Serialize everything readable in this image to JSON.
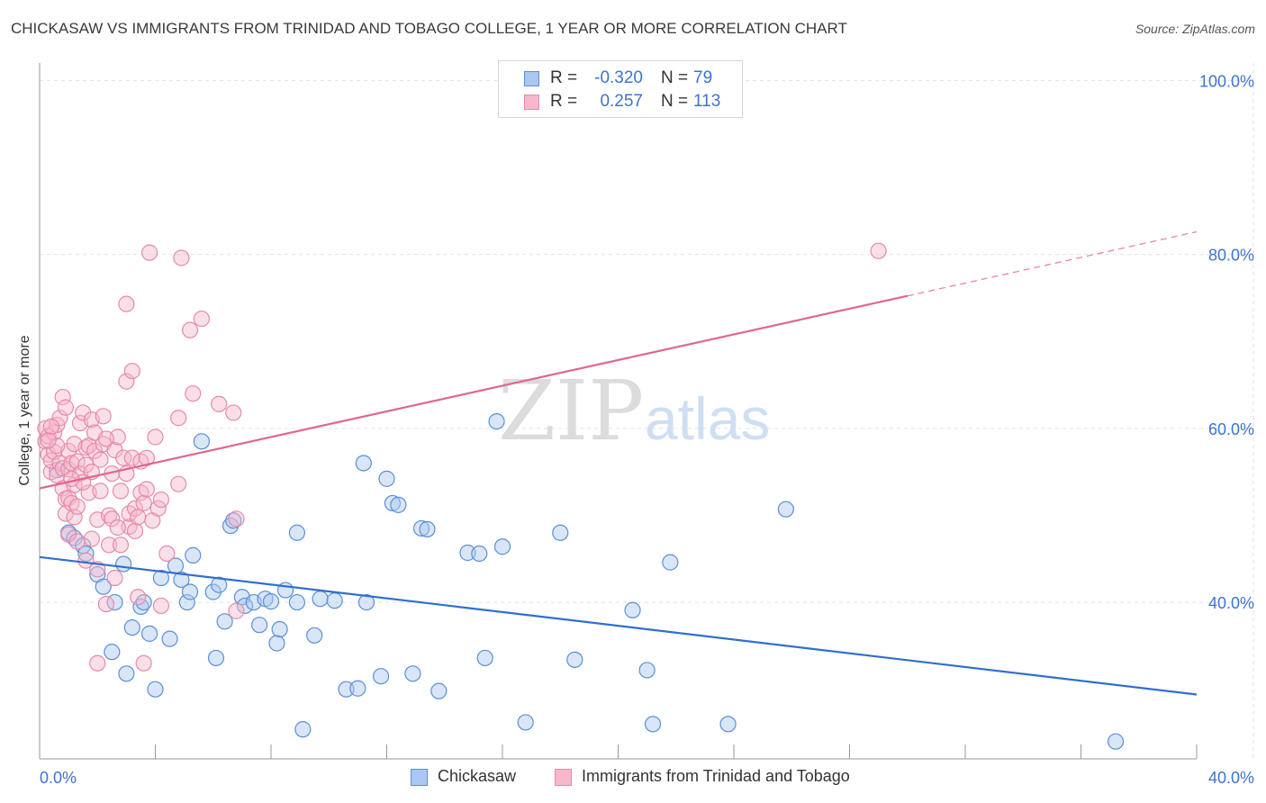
{
  "title": "CHICKASAW VS IMMIGRANTS FROM TRINIDAD AND TOBAGO COLLEGE, 1 YEAR OR MORE CORRELATION CHART",
  "source": "Source: ZipAtlas.com",
  "watermark": {
    "zip": "ZIP",
    "atlas": "atlas"
  },
  "stats": {
    "row1": {
      "r_label": "R =",
      "r_value": "-0.320",
      "n_label": "N =",
      "n_value": "79",
      "color": "#a9c7ef"
    },
    "row2": {
      "r_label": "R =",
      "r_value": "0.257",
      "n_label": "N =",
      "n_value": "113",
      "color": "#f7b8cb"
    }
  },
  "legend": {
    "chickasaw": "Chickasaw",
    "trinidad": "Immigrants from Trinidad and Tobago"
  },
  "colors": {
    "blue_fill": "#a9c7ef",
    "blue_stroke": "#5b8fd6",
    "blue_line": "#2f6fcf",
    "pink_fill": "#f7b8cb",
    "pink_stroke": "#e68aa8",
    "pink_line": "#e06690",
    "grid": "#dde3ea",
    "tick_text": "#3c74cc"
  },
  "chart_data": {
    "type": "scatter",
    "title": "CHICKASAW VS IMMIGRANTS FROM TRINIDAD AND TOBAGO COLLEGE, 1 YEAR OR MORE CORRELATION CHART",
    "xlabel": "",
    "ylabel": "College, 1 year or more",
    "xlim": [
      0,
      40
    ],
    "ylim": [
      22,
      102
    ],
    "x_tick_labels": [
      "0.0%",
      "40.0%"
    ],
    "y_ticks": [
      40,
      60,
      80,
      100
    ],
    "y_tick_labels": [
      "40.0%",
      "60.0%",
      "80.0%",
      "100.0%"
    ],
    "grid": true,
    "legend_position": "bottom",
    "series": [
      {
        "name": "Chickasaw",
        "trend": {
          "x": [
            0,
            40
          ],
          "y": [
            45.2,
            29.4
          ],
          "dashed_from": null
        },
        "points": [
          [
            0.6,
            55.2
          ],
          [
            1.0,
            48.0
          ],
          [
            1.2,
            47.4
          ],
          [
            1.5,
            46.5
          ],
          [
            1.6,
            45.6
          ],
          [
            2.0,
            43.2
          ],
          [
            2.2,
            41.8
          ],
          [
            2.5,
            34.3
          ],
          [
            2.6,
            40.0
          ],
          [
            2.9,
            44.4
          ],
          [
            3.0,
            31.8
          ],
          [
            3.2,
            37.1
          ],
          [
            3.5,
            39.5
          ],
          [
            3.6,
            40.0
          ],
          [
            3.8,
            36.4
          ],
          [
            4.0,
            30.0
          ],
          [
            4.2,
            42.8
          ],
          [
            4.5,
            35.8
          ],
          [
            4.7,
            44.2
          ],
          [
            4.9,
            42.6
          ],
          [
            5.1,
            40.0
          ],
          [
            5.2,
            41.2
          ],
          [
            5.3,
            45.4
          ],
          [
            5.6,
            58.5
          ],
          [
            6.0,
            41.2
          ],
          [
            6.1,
            33.6
          ],
          [
            6.2,
            42.0
          ],
          [
            6.4,
            37.8
          ],
          [
            6.6,
            48.8
          ],
          [
            6.7,
            49.4
          ],
          [
            7.0,
            40.6
          ],
          [
            7.1,
            39.6
          ],
          [
            7.4,
            40.0
          ],
          [
            7.6,
            37.4
          ],
          [
            7.8,
            40.4
          ],
          [
            8.0,
            40.1
          ],
          [
            8.2,
            35.3
          ],
          [
            8.3,
            36.9
          ],
          [
            8.5,
            41.4
          ],
          [
            8.9,
            40.0
          ],
          [
            8.9,
            48.0
          ],
          [
            9.1,
            25.4
          ],
          [
            9.5,
            36.2
          ],
          [
            9.7,
            40.4
          ],
          [
            10.2,
            40.2
          ],
          [
            10.6,
            30.0
          ],
          [
            11.0,
            30.1
          ],
          [
            11.2,
            56.0
          ],
          [
            11.3,
            40.0
          ],
          [
            11.8,
            31.5
          ],
          [
            12.0,
            54.2
          ],
          [
            12.2,
            51.4
          ],
          [
            12.4,
            51.2
          ],
          [
            12.9,
            31.8
          ],
          [
            13.2,
            48.5
          ],
          [
            13.4,
            48.4
          ],
          [
            13.8,
            29.8
          ],
          [
            14.8,
            45.7
          ],
          [
            15.2,
            45.6
          ],
          [
            15.4,
            33.6
          ],
          [
            15.8,
            60.8
          ],
          [
            16.0,
            46.4
          ],
          [
            16.8,
            26.2
          ],
          [
            18.0,
            48.0
          ],
          [
            18.5,
            33.4
          ],
          [
            20.5,
            39.1
          ],
          [
            21.0,
            32.2
          ],
          [
            21.2,
            26.0
          ],
          [
            21.8,
            44.6
          ],
          [
            23.8,
            26.0
          ],
          [
            25.8,
            50.7
          ],
          [
            37.2,
            24.0
          ]
        ]
      },
      {
        "name": "Immigrants from Trinidad and Tobago",
        "trend": {
          "x": [
            0,
            40
          ],
          "y": [
            53.1,
            82.6
          ],
          "dashed_from": 30.0
        },
        "points": [
          [
            0.2,
            58.5
          ],
          [
            0.2,
            60.0
          ],
          [
            0.3,
            57.0
          ],
          [
            0.3,
            59.1
          ],
          [
            0.4,
            55.0
          ],
          [
            0.4,
            56.3
          ],
          [
            0.5,
            57.3
          ],
          [
            0.5,
            59.5
          ],
          [
            0.6,
            54.6
          ],
          [
            0.6,
            60.4
          ],
          [
            0.7,
            56.0
          ],
          [
            0.7,
            61.2
          ],
          [
            0.8,
            53.1
          ],
          [
            0.8,
            55.4
          ],
          [
            0.8,
            63.6
          ],
          [
            0.9,
            50.2
          ],
          [
            0.9,
            51.9
          ],
          [
            1.0,
            47.8
          ],
          [
            1.0,
            52.0
          ],
          [
            1.0,
            55.3
          ],
          [
            1.0,
            57.4
          ],
          [
            1.1,
            51.4
          ],
          [
            1.1,
            56.0
          ],
          [
            1.2,
            49.8
          ],
          [
            1.2,
            53.5
          ],
          [
            1.2,
            58.2
          ],
          [
            1.3,
            47.0
          ],
          [
            1.3,
            51.0
          ],
          [
            1.3,
            56.2
          ],
          [
            1.4,
            54.8
          ],
          [
            1.4,
            60.6
          ],
          [
            1.5,
            61.8
          ],
          [
            1.6,
            44.8
          ],
          [
            1.6,
            55.8
          ],
          [
            1.6,
            57.8
          ],
          [
            1.7,
            52.6
          ],
          [
            1.7,
            58.0
          ],
          [
            1.8,
            47.3
          ],
          [
            1.8,
            55.0
          ],
          [
            1.8,
            61.0
          ],
          [
            1.9,
            57.4
          ],
          [
            1.9,
            59.5
          ],
          [
            2.0,
            33.0
          ],
          [
            2.0,
            43.8
          ],
          [
            2.0,
            49.5
          ],
          [
            2.1,
            52.8
          ],
          [
            2.1,
            56.4
          ],
          [
            2.2,
            58.2
          ],
          [
            2.2,
            61.4
          ],
          [
            2.3,
            39.8
          ],
          [
            2.4,
            46.6
          ],
          [
            2.4,
            50.0
          ],
          [
            2.5,
            49.6
          ],
          [
            2.5,
            54.8
          ],
          [
            2.6,
            42.8
          ],
          [
            2.6,
            57.5
          ],
          [
            2.7,
            59.0
          ],
          [
            2.8,
            46.6
          ],
          [
            2.8,
            52.8
          ],
          [
            2.9,
            56.6
          ],
          [
            3.0,
            65.4
          ],
          [
            3.0,
            74.3
          ],
          [
            3.1,
            48.7
          ],
          [
            3.1,
            50.2
          ],
          [
            3.2,
            56.6
          ],
          [
            3.2,
            66.6
          ],
          [
            3.3,
            48.2
          ],
          [
            3.3,
            50.8
          ],
          [
            3.4,
            40.6
          ],
          [
            3.4,
            49.8
          ],
          [
            3.5,
            52.6
          ],
          [
            3.5,
            56.2
          ],
          [
            3.6,
            33.0
          ],
          [
            3.6,
            51.4
          ],
          [
            3.7,
            53.0
          ],
          [
            3.7,
            56.6
          ],
          [
            3.8,
            80.2
          ],
          [
            3.9,
            49.4
          ],
          [
            4.0,
            59.0
          ],
          [
            4.1,
            50.8
          ],
          [
            4.2,
            39.6
          ],
          [
            4.2,
            51.8
          ],
          [
            4.4,
            45.6
          ],
          [
            4.8,
            53.6
          ],
          [
            4.8,
            61.2
          ],
          [
            4.9,
            79.6
          ],
          [
            5.2,
            71.3
          ],
          [
            5.3,
            64.0
          ],
          [
            5.6,
            72.6
          ],
          [
            6.2,
            62.8
          ],
          [
            6.8,
            39.0
          ],
          [
            6.8,
            49.6
          ],
          [
            6.7,
            61.8
          ],
          [
            0.4,
            60.2
          ],
          [
            0.6,
            58.0
          ],
          [
            0.9,
            62.4
          ],
          [
            1.5,
            53.8
          ],
          [
            2.3,
            58.8
          ],
          [
            2.7,
            48.6
          ],
          [
            0.3,
            58.6
          ],
          [
            1.1,
            54.2
          ],
          [
            3.0,
            54.8
          ],
          [
            29.0,
            80.4
          ]
        ]
      }
    ]
  }
}
